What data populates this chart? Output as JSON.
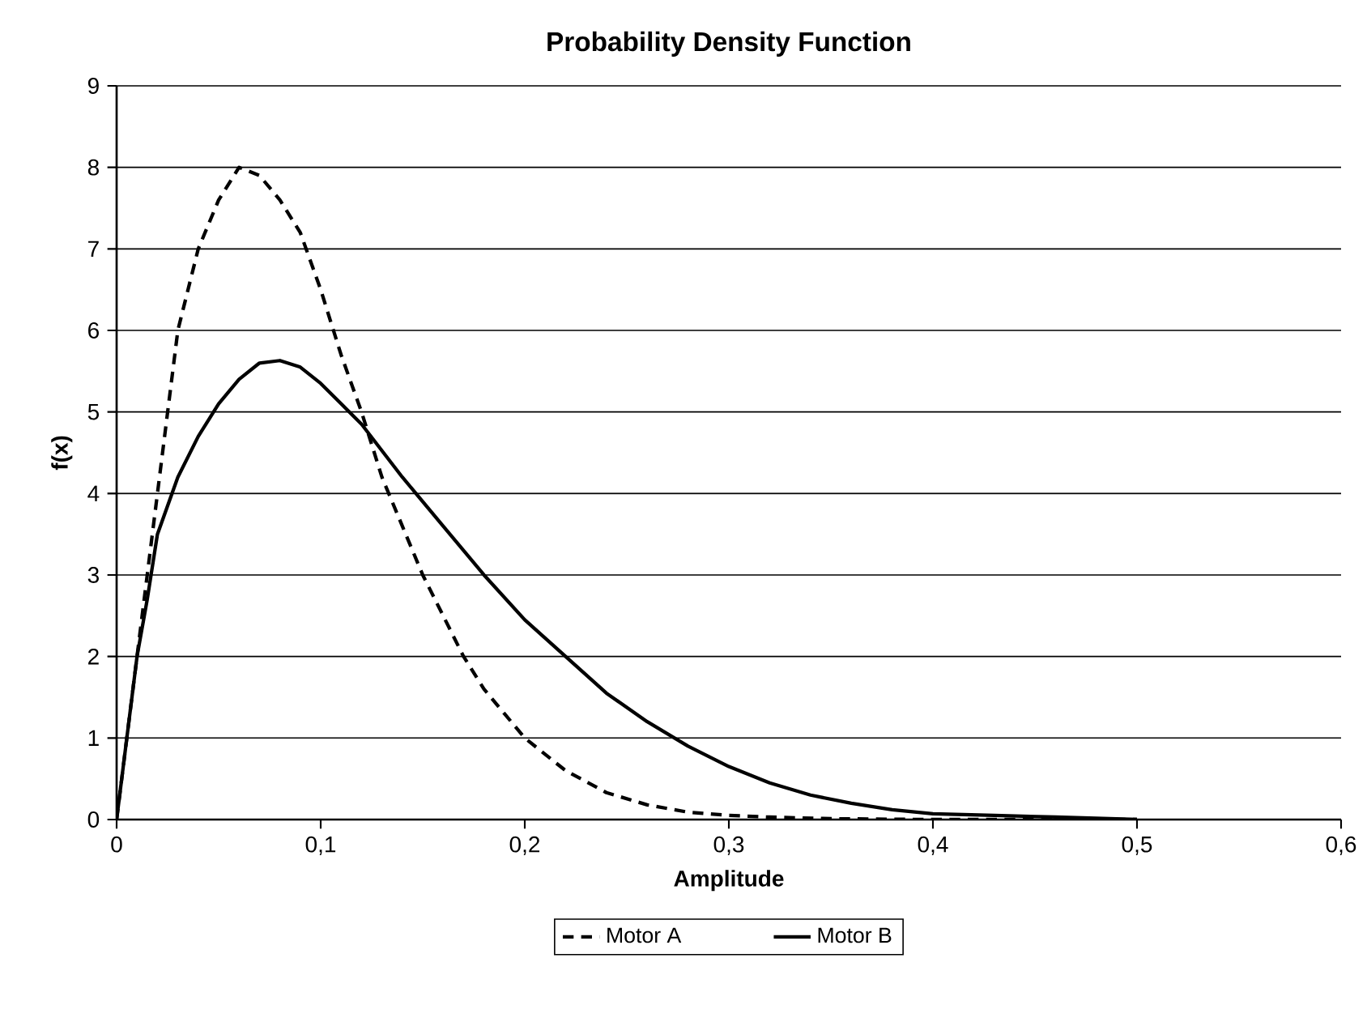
{
  "chart_data": {
    "type": "line",
    "title": "Probability Density Function",
    "xlabel": "Amplitude",
    "ylabel": "f(x)",
    "xlim": [
      0,
      0.6
    ],
    "ylim": [
      0,
      9
    ],
    "xticks": [
      0,
      {
        "value": 0.1,
        "label": "0,1"
      },
      {
        "value": 0.2,
        "label": "0,2"
      },
      {
        "value": 0.3,
        "label": "0,3"
      },
      {
        "value": 0.4,
        "label": "0,4"
      },
      {
        "value": 0.5,
        "label": "0,5"
      },
      {
        "value": 0.6,
        "label": "0,6"
      }
    ],
    "yticks": [
      0,
      1,
      2,
      3,
      4,
      5,
      6,
      7,
      8,
      9
    ],
    "grid": "y",
    "legend": "bottom",
    "marker": "none",
    "series": [
      {
        "name": "Motor A",
        "color": "#000000",
        "line_style": "dashed",
        "x": [
          0,
          0.005,
          0.01,
          0.015,
          0.02,
          0.025,
          0.03,
          0.04,
          0.05,
          0.06,
          0.07,
          0.08,
          0.09,
          0.1,
          0.11,
          0.12,
          0.13,
          0.14,
          0.15,
          0.16,
          0.17,
          0.18,
          0.19,
          0.2,
          0.22,
          0.24,
          0.26,
          0.28,
          0.3,
          0.32,
          0.35,
          0.4,
          0.45,
          0.5
        ],
        "values": [
          0,
          1.0,
          2.0,
          3.0,
          4.0,
          5.0,
          6.0,
          7.0,
          7.6,
          8.0,
          7.9,
          7.6,
          7.2,
          6.5,
          5.7,
          5.0,
          4.2,
          3.6,
          3.0,
          2.5,
          2.0,
          1.6,
          1.3,
          1.0,
          0.6,
          0.33,
          0.18,
          0.09,
          0.05,
          0.03,
          0.01,
          0,
          0,
          0
        ]
      },
      {
        "name": "Motor B",
        "color": "#000000",
        "line_style": "solid",
        "x": [
          0,
          0.005,
          0.01,
          0.015,
          0.02,
          0.03,
          0.04,
          0.05,
          0.06,
          0.07,
          0.08,
          0.09,
          0.1,
          0.11,
          0.12,
          0.14,
          0.16,
          0.18,
          0.2,
          0.22,
          0.24,
          0.26,
          0.28,
          0.3,
          0.32,
          0.34,
          0.36,
          0.38,
          0.4,
          0.43,
          0.46,
          0.5
        ],
        "values": [
          0,
          1.0,
          2.0,
          2.7,
          3.5,
          4.2,
          4.7,
          5.1,
          5.4,
          5.6,
          5.63,
          5.55,
          5.35,
          5.1,
          4.85,
          4.2,
          3.6,
          3.0,
          2.45,
          2.0,
          1.55,
          1.2,
          0.9,
          0.65,
          0.45,
          0.3,
          0.2,
          0.12,
          0.07,
          0.05,
          0.03,
          0
        ]
      }
    ]
  }
}
